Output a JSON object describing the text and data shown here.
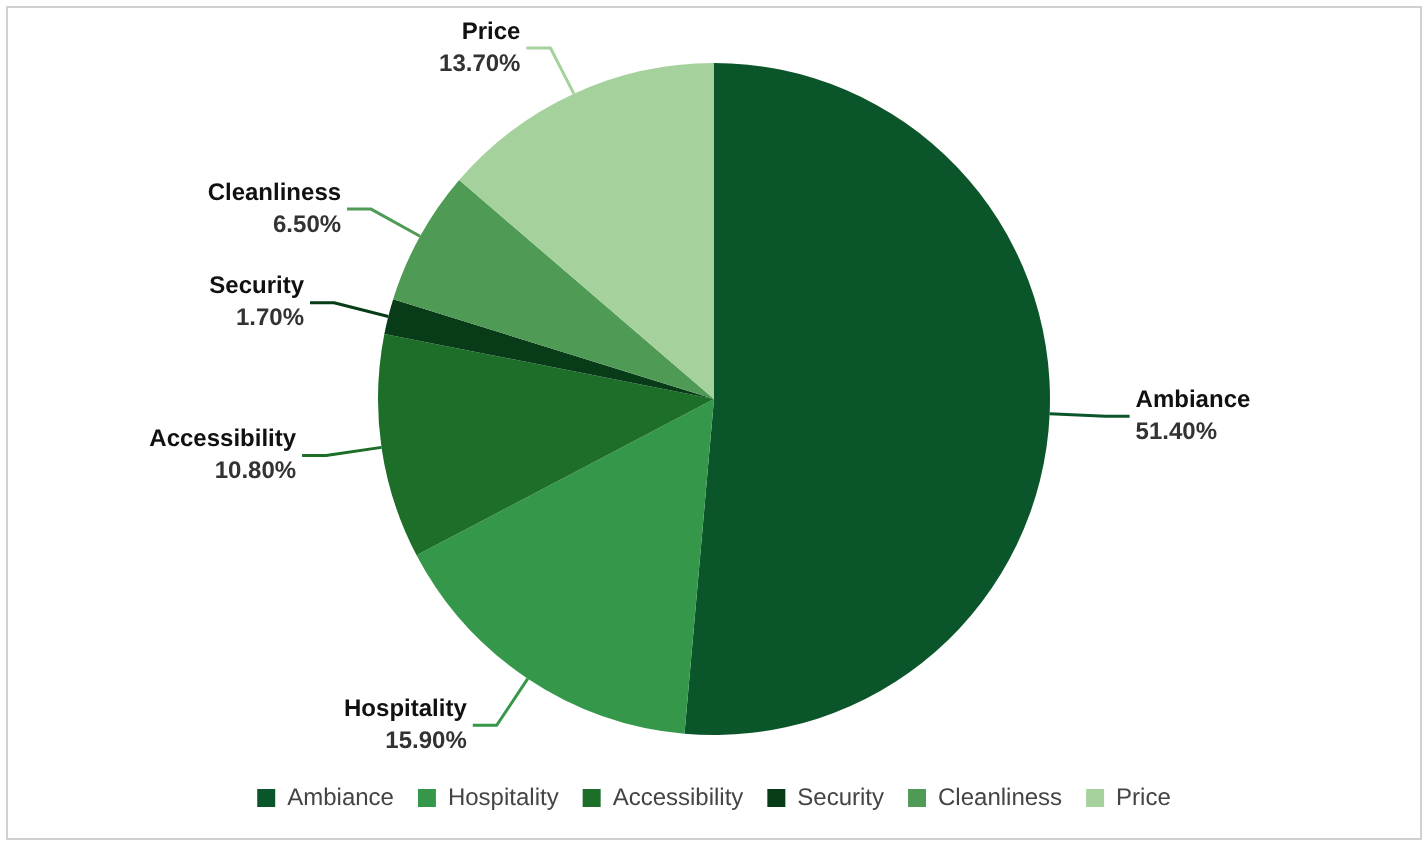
{
  "chart_data": {
    "type": "pie",
    "categories": [
      "Ambiance",
      "Hospitality",
      "Accessibility",
      "Security",
      "Cleanliness",
      "Price"
    ],
    "values": [
      51.4,
      15.9,
      10.8,
      1.7,
      6.5,
      13.7
    ],
    "value_labels": [
      "51.40%",
      "15.90%",
      "10.80%",
      "1.70%",
      "6.50%",
      "13.70%"
    ],
    "colors": [
      "#0b552a",
      "#34974a",
      "#1c6e28",
      "#083c19",
      "#4f9a54",
      "#a5d29c"
    ],
    "legend": "bottom"
  }
}
